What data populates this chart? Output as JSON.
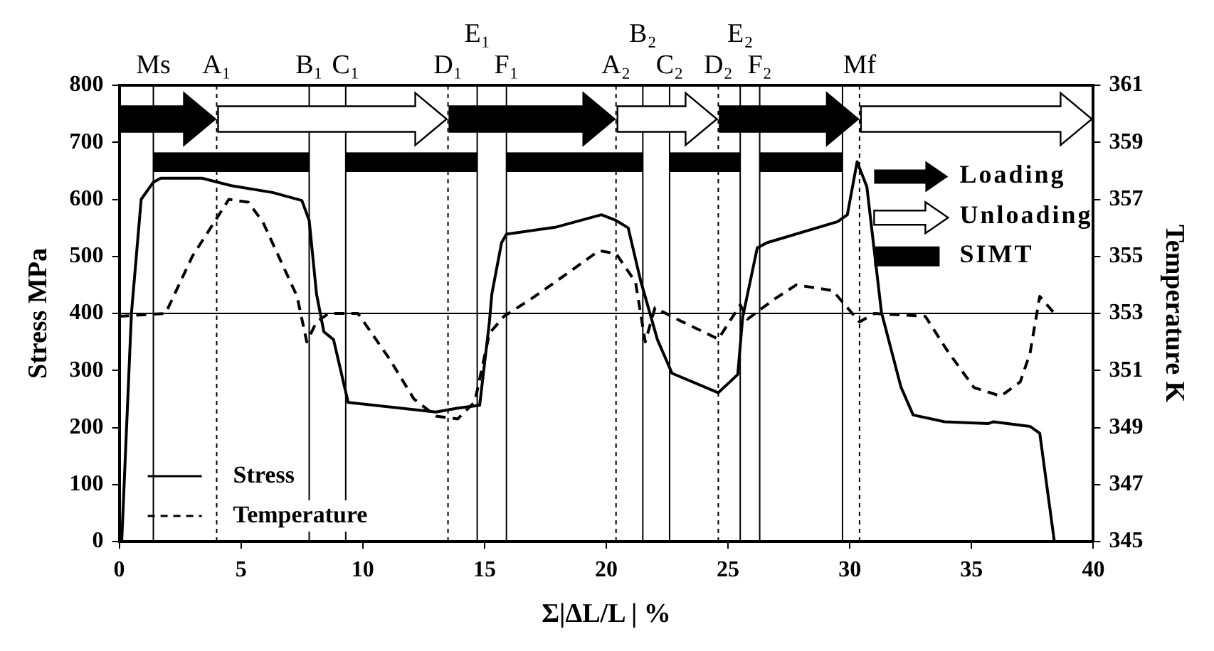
{
  "chart_data": {
    "type": "line",
    "xlabel": "Σ|ΔL/L | %",
    "ylabel": "Stress MPa",
    "y2label": "Temperature K",
    "xlim": [
      0,
      40
    ],
    "xticks": [
      0,
      5,
      10,
      15,
      20,
      25,
      30,
      35,
      40
    ],
    "ylim": [
      0,
      800
    ],
    "yticks": [
      0,
      100,
      200,
      300,
      400,
      500,
      600,
      700,
      800
    ],
    "y2lim": [
      345,
      361
    ],
    "y2ticks": [
      345,
      347,
      349,
      351,
      353,
      355,
      357,
      359,
      361
    ],
    "grid": false,
    "legend": "bottom left",
    "marker": "none",
    "annotations": [
      "Loading",
      "Unloading",
      "SIMT"
    ],
    "ref_lines": [
      {
        "axis": "x",
        "value": 1.4,
        "label": "Ms",
        "line_style": "solid"
      },
      {
        "axis": "x",
        "value": 4.0,
        "label": "A₁",
        "line_style": "dashed"
      },
      {
        "axis": "x",
        "value": 7.8,
        "label": "B₁",
        "line_style": "solid"
      },
      {
        "axis": "x",
        "value": 9.3,
        "label": "C₁",
        "line_style": "solid"
      },
      {
        "axis": "x",
        "value": 13.5,
        "label": "D₁",
        "line_style": "dashed"
      },
      {
        "axis": "x",
        "value": 14.7,
        "label": "E₁",
        "line_style": "solid"
      },
      {
        "axis": "x",
        "value": 15.9,
        "label": "F₁",
        "line_style": "solid"
      },
      {
        "axis": "x",
        "value": 20.4,
        "label": "A₂",
        "line_style": "dashed"
      },
      {
        "axis": "x",
        "value": 21.5,
        "label": "B₂",
        "line_style": "solid"
      },
      {
        "axis": "x",
        "value": 22.6,
        "label": "C₂",
        "line_style": "solid"
      },
      {
        "axis": "x",
        "value": 24.6,
        "label": "D₂",
        "line_style": "dashed"
      },
      {
        "axis": "x",
        "value": 25.5,
        "label": "E₂",
        "line_style": "solid"
      },
      {
        "axis": "x",
        "value": 26.3,
        "label": "F₂",
        "line_style": "solid"
      },
      {
        "axis": "x",
        "value": 29.7,
        "line_style": "solid"
      },
      {
        "axis": "x",
        "value": 30.4,
        "label": "Mf",
        "line_style": "dashed"
      },
      {
        "axis": "y",
        "value": 400,
        "line_style": "solid"
      }
    ],
    "series": [
      {
        "name": "Stress",
        "color": "#000000",
        "line_style": "solid",
        "x": [
          0.1,
          0.5,
          0.9,
          1.4,
          1.7,
          3.4,
          4.6,
          6.3,
          7.5,
          7.8,
          8.1,
          8.4,
          8.8,
          9.4,
          13.0,
          13.9,
          14.8,
          15.2,
          15.3,
          15.7,
          15.9,
          17.9,
          19.8,
          20.4,
          20.9,
          21.4,
          22.1,
          22.7,
          24.6,
          25.4,
          25.6,
          26.2,
          26.6,
          29.5,
          29.9,
          30.3,
          30.7,
          31.3,
          32.1,
          32.6,
          33.9,
          35.7,
          35.9,
          37.4,
          37.8,
          38.4
        ],
        "values": [
          0,
          400,
          600,
          630,
          637,
          637,
          624,
          612,
          598,
          563,
          434,
          368,
          354,
          244,
          227,
          234,
          239,
          385,
          434,
          524,
          539,
          551,
          573,
          563,
          550,
          459,
          354,
          295,
          261,
          293,
          393,
          515,
          524,
          561,
          573,
          666,
          622,
          402,
          271,
          222,
          210,
          207,
          210,
          202,
          190,
          0
        ]
      },
      {
        "name": "Temperature",
        "color": "#000000",
        "line_style": "dashed",
        "axis": "y2",
        "x": [
          0,
          1.9,
          3.0,
          4.5,
          5.3,
          5.9,
          7.3,
          7.7,
          8.1,
          8.6,
          9.8,
          11.1,
          12.1,
          13.0,
          13.9,
          14.6,
          15.2,
          15.8,
          16.9,
          17.9,
          19.7,
          20.4,
          21.2,
          21.6,
          22.0,
          22.9,
          24.6,
          25.5,
          25.8,
          26.9,
          27.8,
          29.3,
          30.1,
          30.4,
          31.0,
          33.1,
          34.0,
          35.1,
          36.2,
          37.0,
          37.4,
          37.8,
          38.4
        ],
        "values": [
          352.9,
          353.0,
          355.0,
          357.0,
          356.9,
          356.2,
          353.6,
          352.0,
          352.7,
          353.0,
          353.0,
          351.4,
          350.0,
          349.4,
          349.3,
          349.9,
          352.3,
          352.9,
          353.5,
          354.1,
          355.2,
          355.1,
          354.1,
          352.0,
          353.2,
          352.8,
          352.1,
          353.3,
          352.8,
          353.5,
          354.0,
          353.8,
          353.0,
          352.7,
          353.0,
          352.9,
          351.7,
          350.4,
          350.1,
          350.6,
          351.6,
          353.6,
          353.0
        ]
      }
    ]
  }
}
